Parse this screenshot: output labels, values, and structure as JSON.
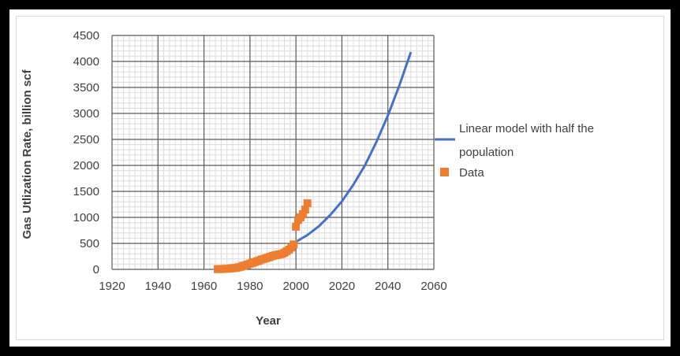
{
  "chart_data": {
    "type": "scatter",
    "xlabel": "Year",
    "ylabel": "Gas Utlization Rate, billion scf",
    "xlim": [
      1920,
      2060
    ],
    "ylim": [
      0,
      4500
    ],
    "x_ticks": [
      1920,
      1940,
      1960,
      1980,
      2000,
      2020,
      2040,
      2060
    ],
    "y_ticks": [
      0,
      500,
      1000,
      1500,
      2000,
      2500,
      3000,
      3500,
      4000,
      4500
    ],
    "grid": true,
    "legend_position": "right",
    "series": [
      {
        "name": "Linear model with half the population",
        "kind": "line",
        "color": "#4472C4",
        "x": [
          2000,
          2005,
          2010,
          2015,
          2020,
          2025,
          2030,
          2035,
          2040,
          2045,
          2050
        ],
        "y": [
          530,
          660,
          830,
          1050,
          1310,
          1630,
          2000,
          2450,
          2960,
          3540,
          4180
        ]
      },
      {
        "name": "Data",
        "kind": "scatter",
        "color": "#ED7D31",
        "x": [
          1966,
          1967,
          1968,
          1969,
          1970,
          1971,
          1972,
          1973,
          1974,
          1975,
          1976,
          1977,
          1978,
          1979,
          1980,
          1981,
          1982,
          1983,
          1984,
          1985,
          1986,
          1987,
          1988,
          1989,
          1990,
          1991,
          1992,
          1993,
          1994,
          1995,
          1996,
          1997,
          1998,
          1999,
          2000,
          2001,
          2002,
          2003,
          2004,
          2005
        ],
        "y": [
          5,
          5,
          8,
          10,
          12,
          15,
          20,
          25,
          30,
          40,
          50,
          70,
          80,
          95,
          110,
          125,
          140,
          155,
          170,
          190,
          200,
          215,
          230,
          245,
          260,
          270,
          280,
          290,
          300,
          320,
          350,
          380,
          420,
          480,
          820,
          950,
          1000,
          1060,
          1150,
          1270
        ]
      }
    ]
  }
}
